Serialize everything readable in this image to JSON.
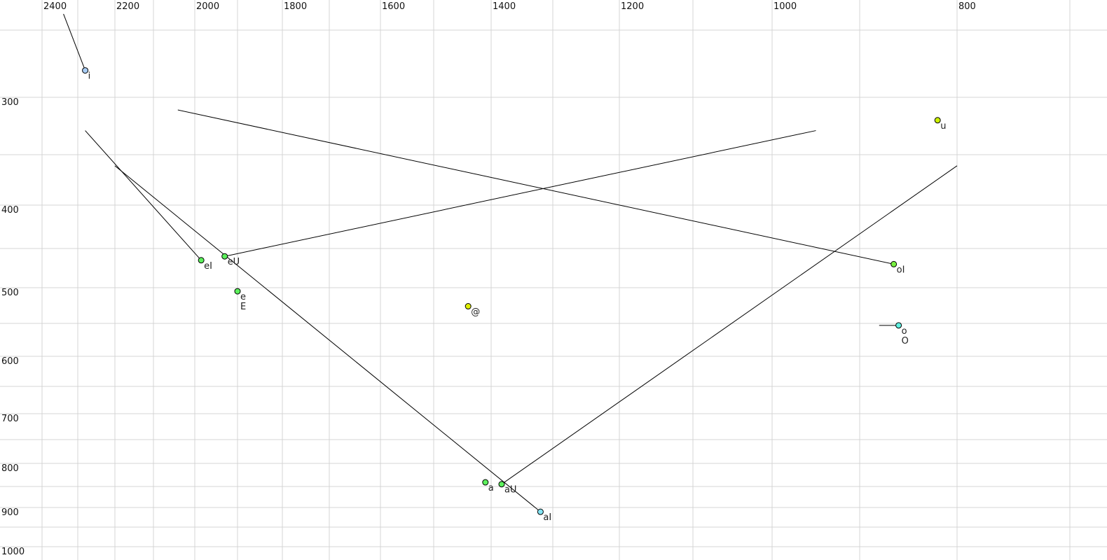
{
  "chart_data": {
    "type": "scatter",
    "title": "",
    "xlabel": "",
    "ylabel": "",
    "x_axis": {
      "reversed": true,
      "position": "top",
      "xlim": [
        2400,
        700
      ],
      "tick_labels": [
        2400,
        2200,
        2000,
        1800,
        1600,
        1400,
        1200,
        1000,
        800
      ],
      "grid": [
        2400,
        2300,
        2200,
        2100,
        2000,
        1900,
        1800,
        1700,
        1600,
        1500,
        1400,
        1300,
        1200,
        1100,
        1000,
        900,
        800,
        700
      ]
    },
    "y_axis": {
      "reversed": true,
      "position": "left",
      "ylim": [
        250,
        1000
      ],
      "tick_labels": [
        300,
        400,
        500,
        600,
        700,
        800,
        900,
        1000
      ],
      "grid": [
        250,
        300,
        350,
        400,
        450,
        500,
        550,
        600,
        650,
        700,
        750,
        800,
        850,
        900,
        950,
        1000
      ]
    },
    "grid": true,
    "points": [
      {
        "label": "i",
        "x": 2280,
        "y": 280,
        "color": "#a8ccf4"
      },
      {
        "label": "u",
        "x": 820,
        "y": 320,
        "color": "#ccf000"
      },
      {
        "label": "eI",
        "x": 1985,
        "y": 465,
        "color": "#5cf05c"
      },
      {
        "label": "eU",
        "x": 1930,
        "y": 460,
        "color": "#5cf05c"
      },
      {
        "label": "e",
        "x": 1900,
        "y": 505,
        "color": "#5cf05c",
        "label2": "E"
      },
      {
        "label": "@",
        "x": 1440,
        "y": 526,
        "color": "#e0f000"
      },
      {
        "label": "oI",
        "x": 865,
        "y": 470,
        "color": "#78f040"
      },
      {
        "label": "o",
        "x": 860,
        "y": 553,
        "color": "#60f0e0",
        "label2": "O"
      },
      {
        "label": "a",
        "x": 1410,
        "y": 841,
        "color": "#5cf05c"
      },
      {
        "label": "aU",
        "x": 1383,
        "y": 845,
        "color": "#5cf05c"
      },
      {
        "label": "aI",
        "x": 1320,
        "y": 911,
        "color": "#84e4f4"
      }
    ],
    "trajectories": [
      {
        "from": "i",
        "x": [
          2280,
          2340
        ],
        "y": [
          280,
          238
        ]
      },
      {
        "from": "eI",
        "x": [
          1985,
          2280
        ],
        "y": [
          465,
          329
        ]
      },
      {
        "from": "aI",
        "x": [
          1320,
          2200
        ],
        "y": [
          911,
          361
        ]
      },
      {
        "from": "eU",
        "x": [
          1930,
          950
        ],
        "y": [
          460,
          329
        ]
      },
      {
        "from": "oI",
        "x": [
          865,
          2041
        ],
        "y": [
          470,
          311
        ]
      },
      {
        "from": "aU",
        "x": [
          1383,
          800
        ],
        "y": [
          845,
          361
        ]
      },
      {
        "from": "o",
        "x": [
          860,
          880
        ],
        "y": [
          553,
          553
        ]
      }
    ]
  }
}
